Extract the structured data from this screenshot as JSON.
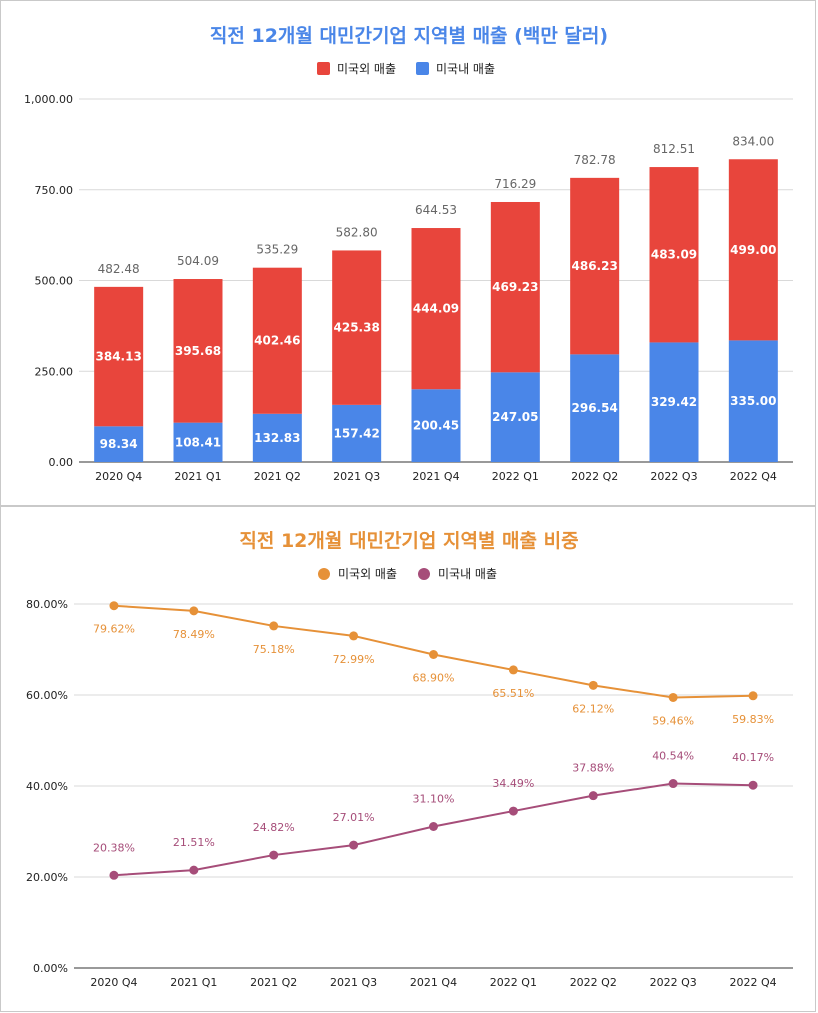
{
  "chart_data": [
    {
      "type": "bar",
      "stacked": true,
      "title": "직전 12개월 대민간기업 지역별 매출 (백만 달러)",
      "title_color": "#4a86e8",
      "categories": [
        "2020 Q4",
        "2021 Q1",
        "2021 Q2",
        "2021 Q3",
        "2021 Q4",
        "2022 Q1",
        "2022 Q2",
        "2022 Q3",
        "2022 Q4"
      ],
      "series": [
        {
          "name": "미국내 매출",
          "color": "#4a86e8",
          "values": [
            98.34,
            108.41,
            132.83,
            157.42,
            200.45,
            247.05,
            296.54,
            329.42,
            335.0
          ],
          "labels": [
            "98.34",
            "108.41",
            "132.83",
            "157.42",
            "200.45",
            "247.05",
            "296.54",
            "329.42",
            "335.00"
          ]
        },
        {
          "name": "미국외 매출",
          "color": "#e8453c",
          "values": [
            384.13,
            395.68,
            402.46,
            425.38,
            444.09,
            469.23,
            486.23,
            483.09,
            499.0
          ],
          "labels": [
            "384.13",
            "395.68",
            "402.46",
            "425.38",
            "444.09",
            "469.23",
            "486.23",
            "483.09",
            "499.00"
          ]
        }
      ],
      "legend_order": [
        "미국외 매출",
        "미국내 매출"
      ],
      "totals": [
        "482.48",
        "504.09",
        "535.29",
        "582.80",
        "644.53",
        "716.29",
        "782.78",
        "812.51",
        "834.00"
      ],
      "ylim": [
        0,
        1000
      ],
      "yticks": [
        0,
        250,
        500,
        750,
        1000
      ],
      "ytick_labels": [
        "0.00",
        "250.00",
        "500.00",
        "750.00",
        "1,000.00"
      ],
      "legend_position": "top-center",
      "grid": true
    },
    {
      "type": "line",
      "title": "직전 12개월 대민간기업 지역별 매출 비중",
      "title_color": "#e69138",
      "categories": [
        "2020 Q4",
        "2021 Q1",
        "2021 Q2",
        "2021 Q3",
        "2021 Q4",
        "2022 Q1",
        "2022 Q2",
        "2022 Q3",
        "2022 Q4"
      ],
      "series": [
        {
          "name": "미국외 매출",
          "color": "#e69138",
          "values": [
            79.62,
            78.49,
            75.18,
            72.99,
            68.9,
            65.51,
            62.12,
            59.46,
            59.83
          ],
          "labels": [
            "79.62%",
            "78.49%",
            "75.18%",
            "72.99%",
            "68.90%",
            "65.51%",
            "62.12%",
            "59.46%",
            "59.83%"
          ],
          "label_side": "below"
        },
        {
          "name": "미국내 매출",
          "color": "#a64d79",
          "values": [
            20.38,
            21.51,
            24.82,
            27.01,
            31.1,
            34.49,
            37.88,
            40.54,
            40.17
          ],
          "labels": [
            "20.38%",
            "21.51%",
            "24.82%",
            "27.01%",
            "31.10%",
            "34.49%",
            "37.88%",
            "40.54%",
            "40.17%"
          ],
          "label_side": "above"
        }
      ],
      "ylim": [
        0,
        80
      ],
      "yticks": [
        0,
        20,
        40,
        60,
        80
      ],
      "ytick_labels": [
        "0.00%",
        "20.00%",
        "40.00%",
        "60.00%",
        "80.00%"
      ],
      "legend_position": "top-center",
      "grid": true
    }
  ]
}
